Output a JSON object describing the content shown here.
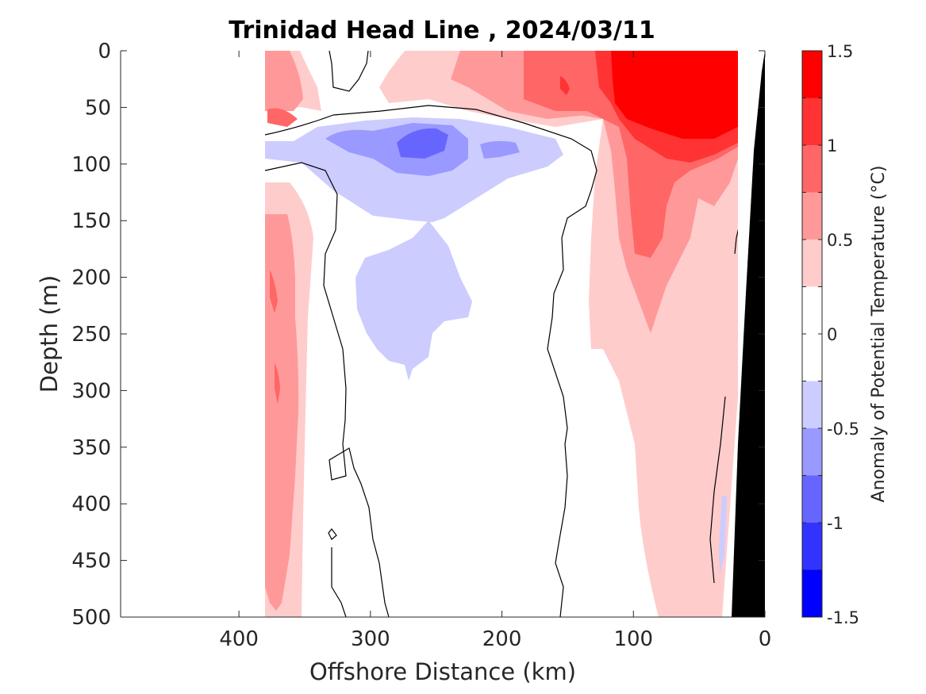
{
  "chart_data": {
    "type": "heatmap",
    "title": "Trinidad Head Line , 2024/03/11",
    "xlabel": "Offshore Distance (km)",
    "ylabel": "Depth (m)",
    "xlim": [
      490,
      0
    ],
    "ylim": [
      0,
      500
    ],
    "x_ticks": [
      400,
      300,
      200,
      100,
      0
    ],
    "y_ticks": [
      0,
      50,
      100,
      150,
      200,
      250,
      300,
      350,
      400,
      450,
      500
    ],
    "x_axis_reversed": true,
    "y_axis_reversed": true,
    "colorbar": {
      "label": "Anomaly of Potential Temperature (°C)",
      "ticks": [
        1.5,
        1,
        0.5,
        0,
        -0.5,
        -1,
        -1.5
      ],
      "range": [
        -1.5,
        1.5
      ],
      "levels": [
        {
          "from": 1.25,
          "to": 1.5,
          "color": "#ff0000"
        },
        {
          "from": 1.0,
          "to": 1.25,
          "color": "#ff3333"
        },
        {
          "from": 0.75,
          "to": 1.0,
          "color": "#ff6666"
        },
        {
          "from": 0.5,
          "to": 0.75,
          "color": "#ff9999"
        },
        {
          "from": 0.25,
          "to": 0.5,
          "color": "#ffcccc"
        },
        {
          "from": 0.0,
          "to": 0.25,
          "color": "#ffffff"
        },
        {
          "from": -0.25,
          "to": 0.0,
          "color": "#ffffff"
        },
        {
          "from": -0.5,
          "to": -0.25,
          "color": "#ccccff"
        },
        {
          "from": -0.75,
          "to": -0.5,
          "color": "#9999ff"
        },
        {
          "from": -1.0,
          "to": -0.75,
          "color": "#6666ff"
        },
        {
          "from": -1.25,
          "to": -1.0,
          "color": "#3333ff"
        },
        {
          "from": -1.5,
          "to": -1.25,
          "color": "#0000ff"
        }
      ]
    },
    "data_extent_km": [
      380,
      21
    ],
    "bathymetry_color": "#000000",
    "grid": false,
    "legend": "colorbar-right"
  }
}
